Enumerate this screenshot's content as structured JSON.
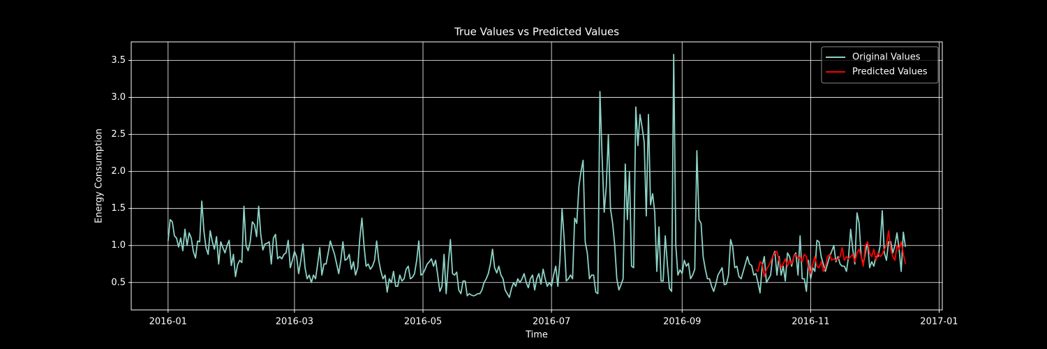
{
  "chart_data": {
    "type": "line",
    "title": "True Values vs Predicted Values",
    "xlabel": "Time",
    "ylabel": "Energy Consumption",
    "xlim": [
      -17.5,
      367.5
    ],
    "ylim": [
      0.13,
      3.75
    ],
    "xticks": [
      {
        "value": 0,
        "label": "2016-01"
      },
      {
        "value": 60,
        "label": "2016-03"
      },
      {
        "value": 121,
        "label": "2016-05"
      },
      {
        "value": 182,
        "label": "2016-07"
      },
      {
        "value": 244,
        "label": "2016-09"
      },
      {
        "value": 305,
        "label": "2016-11"
      },
      {
        "value": 366,
        "label": "2017-01"
      }
    ],
    "yticks": [
      0.5,
      {
        "value": 1,
        "label": "1.0"
      },
      1.5,
      {
        "value": 2,
        "label": "2.0"
      },
      2.5,
      {
        "value": 3,
        "label": "3.0"
      },
      3.5
    ],
    "grid": true,
    "legend": "upper right",
    "series": [
      {
        "name": "Original Values",
        "color": "#8dd3c7",
        "x": [
          0,
          1,
          2,
          3,
          4,
          5,
          6,
          7,
          8,
          9,
          10,
          11,
          12,
          13,
          14,
          15,
          16,
          17,
          18,
          19,
          20,
          21,
          22,
          23,
          24,
          25,
          26,
          27,
          28,
          29,
          30,
          31,
          32,
          33,
          34,
          35,
          36,
          37,
          38,
          39,
          40,
          41,
          42,
          43,
          44,
          45,
          46,
          47,
          48,
          49,
          50,
          51,
          52,
          53,
          54,
          55,
          56,
          57,
          58,
          59,
          60,
          61,
          62,
          63,
          64,
          65,
          66,
          67,
          68,
          69,
          70,
          71,
          72,
          73,
          74,
          75,
          76,
          77,
          78,
          79,
          80,
          81,
          82,
          83,
          84,
          85,
          86,
          87,
          88,
          89,
          90,
          91,
          92,
          93,
          94,
          95,
          96,
          97,
          98,
          99,
          100,
          101,
          102,
          103,
          104,
          105,
          106,
          107,
          108,
          109,
          110,
          111,
          112,
          113,
          114,
          115,
          116,
          117,
          118,
          119,
          120,
          121,
          122,
          123,
          124,
          125,
          126,
          127,
          128,
          129,
          130,
          131,
          132,
          133,
          134,
          135,
          136,
          137,
          138,
          139,
          140,
          141,
          142,
          143,
          144,
          145,
          146,
          147,
          148,
          149,
          150,
          151,
          152,
          153,
          154,
          155,
          156,
          157,
          158,
          159,
          160,
          161,
          162,
          163,
          164,
          165,
          166,
          167,
          168,
          169,
          170,
          171,
          172,
          173,
          174,
          175,
          176,
          177,
          178,
          179,
          180,
          181,
          182,
          183,
          184,
          185,
          186,
          187,
          188,
          189,
          190,
          191,
          192,
          193,
          194,
          195,
          196,
          197,
          198,
          199,
          200,
          201,
          202,
          203,
          204,
          205,
          206,
          207,
          208,
          209,
          210,
          211,
          212,
          213,
          214,
          215,
          216,
          217,
          218,
          219,
          220,
          221,
          222,
          223,
          224,
          225,
          226,
          227,
          228,
          229,
          230,
          231,
          232,
          233,
          234,
          235,
          236,
          237,
          238,
          239,
          240,
          241,
          242,
          243,
          244,
          245,
          246,
          247,
          248,
          249,
          250,
          251,
          252,
          253,
          254,
          255,
          256,
          257,
          258,
          259,
          260,
          261,
          262,
          263,
          264,
          265,
          266,
          267,
          268,
          269,
          270,
          271,
          272,
          273,
          274,
          275,
          276,
          277,
          278,
          279,
          280,
          281,
          282,
          283,
          284,
          285,
          286,
          287,
          288,
          289,
          290,
          291,
          292,
          293,
          294,
          295,
          296,
          297,
          298,
          299,
          300,
          301,
          302,
          303,
          304,
          305,
          306,
          307,
          308,
          309,
          310,
          311,
          312,
          313,
          314,
          315,
          316,
          317,
          318,
          319,
          320,
          321,
          322,
          323,
          324,
          325,
          326,
          327,
          328,
          329,
          330,
          331,
          332,
          333,
          334,
          335,
          336,
          337,
          338,
          339,
          340,
          341,
          342,
          343,
          344,
          345,
          346,
          347,
          348,
          349,
          350
        ],
        "values": [
          1.06,
          1.35,
          1.32,
          1.13,
          1.1,
          0.98,
          1.1,
          0.93,
          1.22,
          1.0,
          1.17,
          1.1,
          0.92,
          0.83,
          1.06,
          1.05,
          1.6,
          1.2,
          0.97,
          0.88,
          1.2,
          1.05,
          0.95,
          1.12,
          0.75,
          1.05,
          0.97,
          0.9,
          1.0,
          1.07,
          0.73,
          0.88,
          0.58,
          0.74,
          0.8,
          0.77,
          1.53,
          1.0,
          0.93,
          1.05,
          1.32,
          1.28,
          1.12,
          1.53,
          1.15,
          0.94,
          1.02,
          1.03,
          1.05,
          0.75,
          1.1,
          1.15,
          0.82,
          0.85,
          0.82,
          0.88,
          0.9,
          1.07,
          0.7,
          0.8,
          0.92,
          0.85,
          0.62,
          0.8,
          1.02,
          0.7,
          0.55,
          0.6,
          0.5,
          0.6,
          0.55,
          0.75,
          0.97,
          0.6,
          0.75,
          0.75,
          0.9,
          1.06,
          0.97,
          0.88,
          0.75,
          0.62,
          0.8,
          1.05,
          0.8,
          0.82,
          0.88,
          0.68,
          0.78,
          0.6,
          0.7,
          1.1,
          1.37,
          1.0,
          0.72,
          0.75,
          0.68,
          0.72,
          0.8,
          1.06,
          0.8,
          0.65,
          0.55,
          0.6,
          0.37,
          0.55,
          0.5,
          0.65,
          0.45,
          0.45,
          0.6,
          0.52,
          0.55,
          0.68,
          0.72,
          0.55,
          0.57,
          0.62,
          0.8,
          1.06,
          0.6,
          0.62,
          0.68,
          0.75,
          0.78,
          0.82,
          0.72,
          0.8,
          0.6,
          0.38,
          0.45,
          0.88,
          0.35,
          0.75,
          1.08,
          0.62,
          0.6,
          0.64,
          0.4,
          0.35,
          0.52,
          0.52,
          0.32,
          0.35,
          0.33,
          0.32,
          0.33,
          0.35,
          0.35,
          0.4,
          0.5,
          0.55,
          0.62,
          0.75,
          0.95,
          0.7,
          0.63,
          0.72,
          0.6,
          0.55,
          0.4,
          0.35,
          0.3,
          0.42,
          0.5,
          0.45,
          0.55,
          0.5,
          0.55,
          0.62,
          0.5,
          0.43,
          0.55,
          0.6,
          0.4,
          0.55,
          0.62,
          0.48,
          0.68,
          0.55,
          0.45,
          0.5,
          0.45,
          0.6,
          0.72,
          0.45,
          0.8,
          1.5,
          1.1,
          0.52,
          0.55,
          0.6,
          0.55,
          1.37,
          1.3,
          1.8,
          2.0,
          2.15,
          1.05,
          0.9,
          0.55,
          0.6,
          0.6,
          0.37,
          0.35,
          3.08,
          2.2,
          1.45,
          1.8,
          2.5,
          1.5,
          1.3,
          1.0,
          0.55,
          0.4,
          0.47,
          0.55,
          2.1,
          1.35,
          2.0,
          0.72,
          0.7,
          2.87,
          2.35,
          2.77,
          2.6,
          2.4,
          1.4,
          2.77,
          1.55,
          1.7,
          1.45,
          0.65,
          1.25,
          0.52,
          0.52,
          1.13,
          0.75,
          0.42,
          0.38,
          3.58,
          1.0,
          0.6,
          0.67,
          0.62,
          0.8,
          0.72,
          0.76,
          0.55,
          0.6,
          0.68,
          2.28,
          1.35,
          1.3,
          0.85,
          0.68,
          0.55,
          0.55,
          0.45,
          0.38,
          0.48,
          0.6,
          0.65,
          0.7,
          0.47,
          0.48,
          0.6,
          1.08,
          0.98,
          0.7,
          0.72,
          0.58,
          0.55,
          0.65,
          0.75,
          0.85,
          0.75,
          0.73,
          0.6,
          0.62,
          0.5,
          0.36,
          0.72,
          0.85,
          0.5,
          0.55,
          0.6,
          0.85,
          0.92,
          0.6,
          0.85,
          0.6,
          0.72,
          0.52,
          0.9,
          0.85,
          0.72,
          0.85,
          0.9,
          0.6,
          1.13,
          0.55,
          0.55,
          0.38,
          0.8,
          0.55,
          0.7,
          0.65,
          1.07,
          1.05,
          0.85,
          0.75,
          0.65,
          0.75,
          0.85,
          0.92,
          1.0,
          0.78,
          0.85,
          0.75,
          0.72,
          0.72,
          0.65,
          0.85,
          1.22,
          0.95,
          0.75,
          1.44,
          1.3,
          0.85,
          0.75,
          0.9,
          1.05,
          0.7,
          0.78,
          0.72,
          0.85,
          0.85,
          1.0,
          1.47,
          0.9,
          0.8,
          1.05,
          1.05,
          0.9,
          1.0,
          1.17,
          0.95,
          0.65,
          1.18,
          0.98
        ]
      },
      {
        "name": "Predicted Values",
        "color": "#ff0000",
        "x": [
          279,
          280,
          281,
          282,
          283,
          284,
          285,
          286,
          287,
          288,
          289,
          290,
          291,
          292,
          293,
          294,
          295,
          296,
          297,
          298,
          299,
          300,
          301,
          302,
          303,
          304,
          305,
          306,
          307,
          308,
          309,
          310,
          311,
          312,
          313,
          314,
          315,
          316,
          317,
          318,
          319,
          320,
          321,
          322,
          323,
          324,
          325,
          326,
          327,
          328,
          329,
          330,
          331,
          332,
          333,
          334,
          335,
          336,
          337,
          338,
          339,
          340,
          341,
          342,
          343,
          344,
          345,
          346,
          347,
          348,
          349,
          350
        ],
        "values": [
          0.68,
          0.65,
          0.78,
          0.75,
          0.58,
          0.68,
          0.72,
          0.78,
          0.85,
          0.9,
          0.92,
          0.8,
          0.7,
          0.75,
          0.82,
          0.72,
          0.8,
          0.75,
          0.85,
          0.88,
          0.82,
          0.85,
          0.78,
          0.88,
          0.85,
          0.7,
          0.62,
          0.75,
          0.85,
          0.72,
          0.7,
          0.78,
          0.65,
          0.7,
          0.85,
          0.88,
          0.8,
          0.82,
          0.8,
          0.82,
          0.85,
          0.97,
          0.8,
          0.85,
          0.82,
          0.85,
          0.88,
          0.78,
          0.9,
          0.95,
          0.85,
          0.72,
          1.0,
          1.05,
          0.9,
          0.85,
          0.95,
          0.8,
          0.9,
          0.85,
          0.88,
          0.95,
          1.0,
          1.2,
          0.95,
          0.85,
          0.8,
          1.0,
          0.95,
          1.05,
          0.88,
          0.75
        ]
      }
    ]
  }
}
